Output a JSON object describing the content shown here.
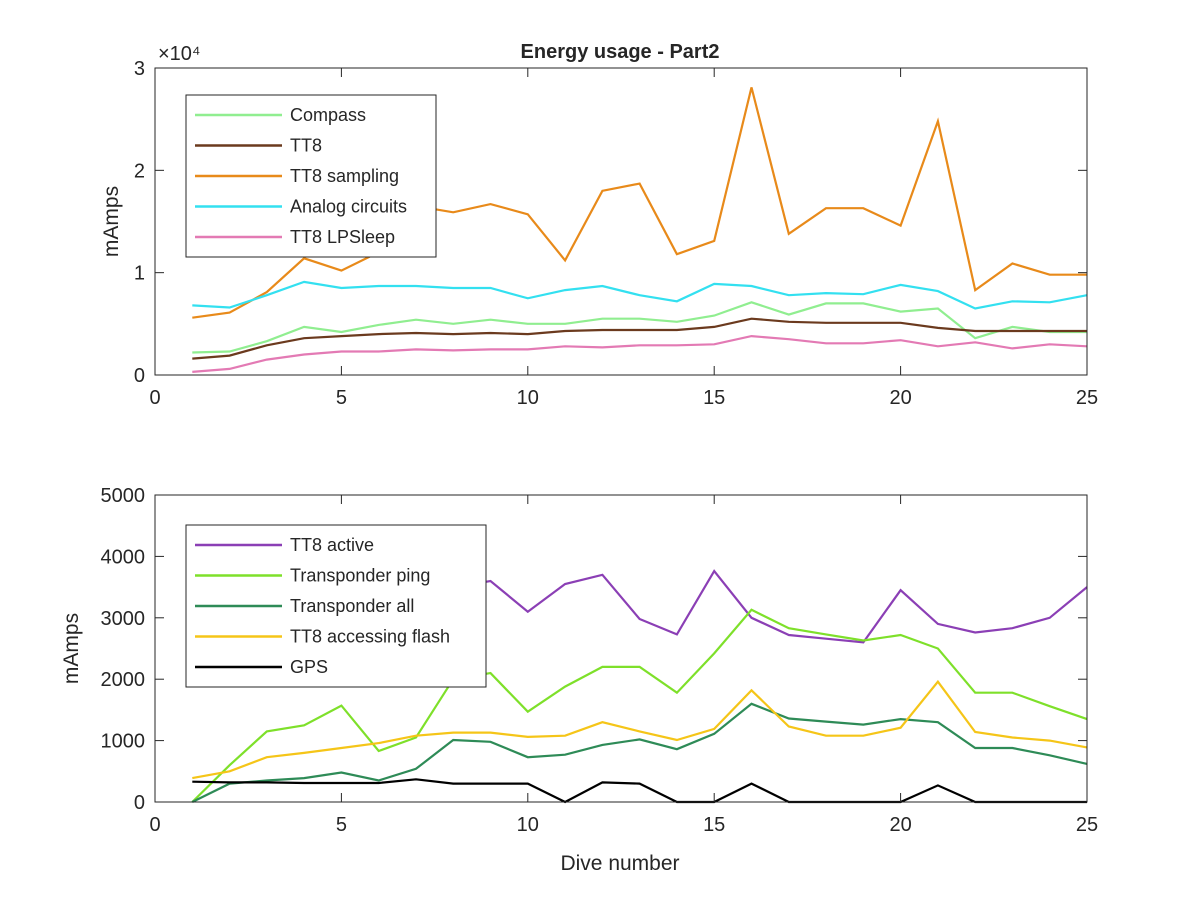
{
  "chart_data": [
    {
      "type": "line",
      "title": "Energy usage - Part2",
      "xlabel": "",
      "ylabel": "mAmps",
      "exponent_label": "×10⁴",
      "xlim": [
        0,
        25
      ],
      "ylim": [
        0,
        30000
      ],
      "xticks": [
        0,
        5,
        10,
        15,
        20,
        25
      ],
      "yticks": [
        0,
        10000,
        20000,
        30000
      ],
      "ytick_labels": [
        "0",
        "1",
        "2",
        "3"
      ],
      "grid": false,
      "legend_position": "top-left",
      "x": [
        1,
        2,
        3,
        4,
        5,
        6,
        7,
        8,
        9,
        10,
        11,
        12,
        13,
        14,
        15,
        16,
        17,
        18,
        19,
        20,
        21,
        22,
        23,
        24,
        25
      ],
      "series": [
        {
          "name": "Compass",
          "color": "#90ee90",
          "values": [
            2200,
            2300,
            3300,
            4700,
            4200,
            4900,
            5400,
            5000,
            5400,
            5000,
            5000,
            5500,
            5500,
            5200,
            5800,
            7100,
            5900,
            7000,
            7000,
            6200,
            6500,
            3600,
            4700,
            4200,
            4200
          ]
        },
        {
          "name": "TT8",
          "color": "#6b3a1e",
          "values": [
            1600,
            1900,
            2900,
            3600,
            3800,
            4000,
            4100,
            4000,
            4100,
            4000,
            4300,
            4400,
            4400,
            4400,
            4700,
            5500,
            5200,
            5100,
            5100,
            5100,
            4600,
            4300,
            4300,
            4300,
            4300
          ]
        },
        {
          "name": "TT8 sampling",
          "color": "#e88a1a",
          "values": [
            5600,
            6100,
            8100,
            11400,
            10200,
            12000,
            16500,
            15900,
            16700,
            15700,
            11200,
            18000,
            18700,
            11800,
            13100,
            28100,
            13800,
            16300,
            16300,
            14600,
            24800,
            8300,
            10900,
            9800,
            9800
          ]
        },
        {
          "name": "Analog circuits",
          "color": "#33e0f0",
          "values": [
            6800,
            6600,
            7800,
            9100,
            8500,
            8700,
            8700,
            8500,
            8500,
            7500,
            8300,
            8700,
            7800,
            7200,
            8900,
            8700,
            7800,
            8000,
            7900,
            8800,
            8200,
            6500,
            7200,
            7100,
            7800
          ]
        },
        {
          "name": "TT8 LPSleep",
          "color": "#e37ab4",
          "values": [
            300,
            600,
            1500,
            2000,
            2300,
            2300,
            2500,
            2400,
            2500,
            2500,
            2800,
            2700,
            2900,
            2900,
            3000,
            3800,
            3500,
            3100,
            3100,
            3400,
            2800,
            3200,
            2600,
            3000,
            2800
          ]
        }
      ]
    },
    {
      "type": "line",
      "title": "",
      "xlabel": "Dive number",
      "ylabel": "mAmps",
      "xlim": [
        0,
        25
      ],
      "ylim": [
        0,
        5000
      ],
      "xticks": [
        0,
        5,
        10,
        15,
        20,
        25
      ],
      "yticks": [
        0,
        1000,
        2000,
        3000,
        4000,
        5000
      ],
      "ytick_labels": [
        "0",
        "1000",
        "2000",
        "3000",
        "4000",
        "5000"
      ],
      "grid": false,
      "legend_position": "top-left",
      "x": [
        1,
        2,
        3,
        4,
        5,
        6,
        7,
        8,
        9,
        10,
        11,
        12,
        13,
        14,
        15,
        16,
        17,
        18,
        19,
        20,
        21,
        22,
        23,
        24,
        25
      ],
      "series": [
        {
          "name": "TT8 active",
          "color": "#8b3fb5",
          "values": [
            3200,
            3300,
            3300,
            3400,
            3400,
            3300,
            3400,
            3500,
            3600,
            3100,
            3550,
            3700,
            2980,
            2730,
            3760,
            3000,
            2720,
            2660,
            2600,
            3450,
            2900,
            2760,
            2830,
            3000,
            3500
          ]
        },
        {
          "name": "Transponder ping",
          "color": "#7ee02a",
          "values": [
            0,
            600,
            1150,
            1250,
            1570,
            830,
            1050,
            2000,
            2100,
            1470,
            1880,
            2200,
            2200,
            1780,
            2420,
            3130,
            2830,
            2730,
            2630,
            2720,
            2500,
            1780,
            1780,
            1560,
            1350
          ]
        },
        {
          "name": "Transponder all",
          "color": "#2e8b57",
          "values": [
            0,
            300,
            350,
            390,
            480,
            350,
            540,
            1010,
            980,
            730,
            770,
            930,
            1020,
            860,
            1110,
            1600,
            1360,
            1310,
            1260,
            1350,
            1300,
            880,
            880,
            760,
            620
          ]
        },
        {
          "name": "TT8 accessing flash",
          "color": "#f5c518",
          "values": [
            390,
            500,
            730,
            800,
            880,
            960,
            1080,
            1130,
            1130,
            1060,
            1080,
            1300,
            1150,
            1010,
            1190,
            1820,
            1230,
            1080,
            1080,
            1210,
            1960,
            1140,
            1050,
            1000,
            890
          ]
        },
        {
          "name": "GPS",
          "color": "#000000",
          "values": [
            330,
            320,
            320,
            310,
            310,
            310,
            370,
            300,
            300,
            300,
            0,
            320,
            300,
            0,
            0,
            300,
            0,
            0,
            0,
            0,
            270,
            0,
            0,
            0,
            0
          ]
        }
      ]
    }
  ]
}
